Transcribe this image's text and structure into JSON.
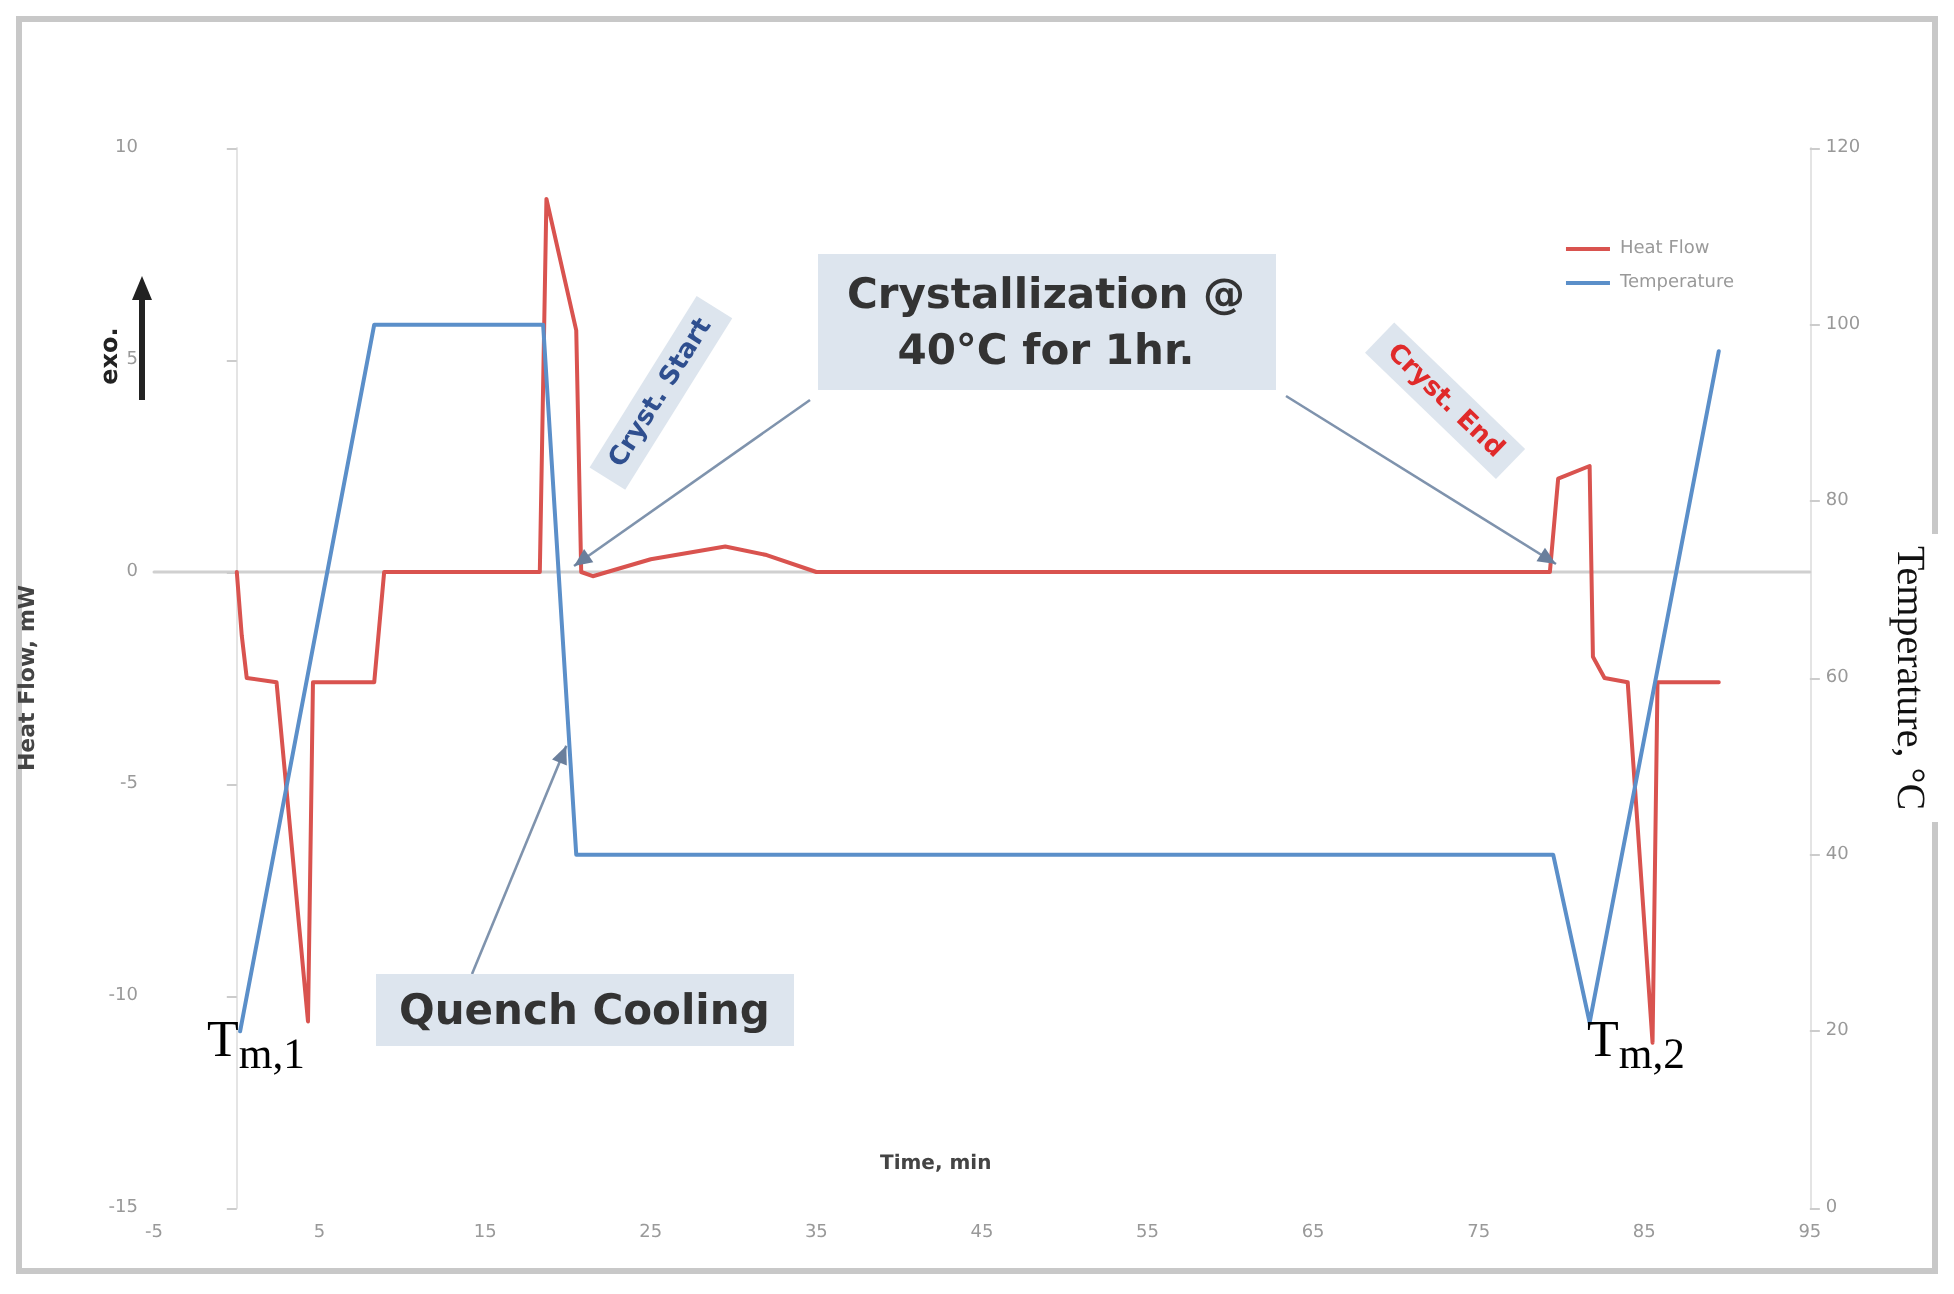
{
  "chart_data": {
    "type": "line",
    "xlabel": "Time, min",
    "ylabel": "Heat Flow, mW",
    "y2label": "Temperature, °C",
    "xlim": [
      -5,
      95
    ],
    "xticks": [
      -5,
      5,
      15,
      25,
      35,
      45,
      55,
      65,
      75,
      85,
      95
    ],
    "ylim": [
      -15,
      10
    ],
    "yticks": [
      -15,
      -10,
      -5,
      0,
      5,
      10
    ],
    "y2lim": [
      0,
      120
    ],
    "y2ticks": [
      0,
      20,
      40,
      60,
      80,
      100,
      120
    ],
    "legend": "top right",
    "marker": "none",
    "line_style": "solid",
    "annotations": [
      "exo.",
      "Cryst. Start",
      "Crystallization @ 40°C for 1hr.",
      "Cryst. End",
      {
        "text": "Quench Cooling",
        "x": 19.9,
        "y": -4.1
      },
      "T$_{m,1}$",
      "T$_{m,2}$"
    ],
    "series": [
      {
        "name": "Heat Flow",
        "color": "#d9534f",
        "x": [
          0,
          0.3,
          0.6,
          2.4,
          4.3,
          4.6,
          8.3,
          8.9,
          18.3,
          18.7,
          20.5,
          20.8,
          21.5,
          25,
          29.5,
          32,
          35,
          79.3,
          79.8,
          81.7,
          81.9,
          82.6,
          84,
          85.5,
          85.8,
          89.5
        ],
        "values": [
          0,
          -1.5,
          -2.5,
          -2.6,
          -10.6,
          -2.6,
          -2.6,
          0,
          0,
          8.8,
          5.7,
          0,
          -0.1,
          0.3,
          0.6,
          0.4,
          0,
          0,
          2.2,
          2.5,
          -2,
          -2.5,
          -2.6,
          -11.1,
          -2.6,
          -2.6
        ]
      },
      {
        "name": "Temperature",
        "color": "#5b8fc9",
        "axis": "y2",
        "x": [
          0.2,
          8.3,
          18.5,
          20.5,
          79.5,
          81.7,
          89.5
        ],
        "values": [
          20,
          100,
          100,
          40,
          40,
          21,
          97
        ]
      }
    ]
  }
}
